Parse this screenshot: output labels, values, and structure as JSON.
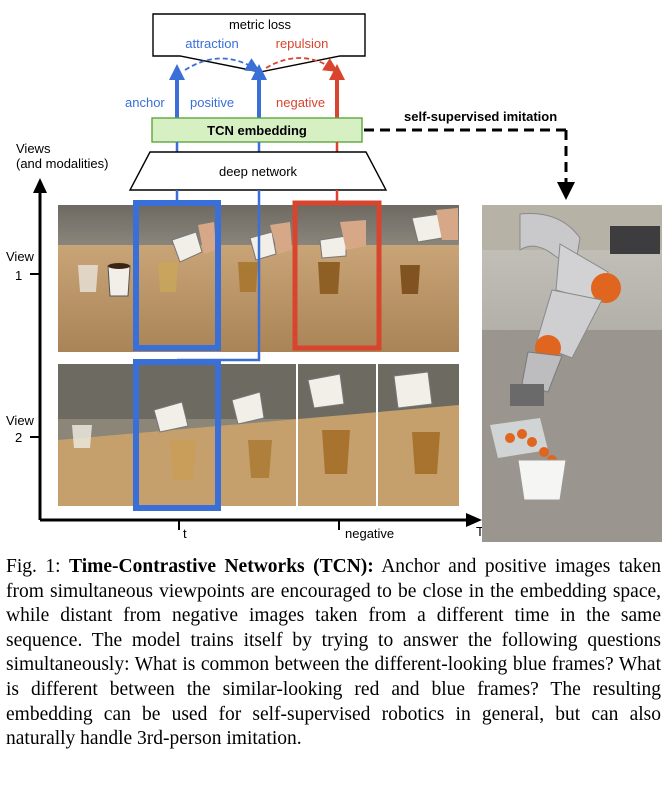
{
  "figure": {
    "metric_loss": "metric loss",
    "attraction": "attraction",
    "repulsion": "repulsion",
    "anchor": "anchor",
    "positive": "positive",
    "negative": "negative",
    "tcn_embedding": "TCN embedding",
    "deep_network": "deep network",
    "self_supervised_imitation": "self-supervised imitation",
    "views_axis_line1": "Views",
    "views_axis_line2": "(and modalities)",
    "view1_line1": "View",
    "view1_line2": "1",
    "view2_line1": "View",
    "view2_line2": "2",
    "time_axis": "Time",
    "tick_t": "t",
    "tick_negative": "negative",
    "colors": {
      "blue": "#3a6fd8",
      "red": "#d9442e",
      "green_box": "#d6f0c4",
      "green_border": "#5fa53f"
    }
  },
  "caption": {
    "label": "Fig. 1:",
    "title": "Time-Contrastive Networks (TCN):",
    "body": "Anchor and positive images taken from simultaneous viewpoints are encouraged to be close in the embedding space, while distant from negative images taken from a different time in the same sequence. The model trains itself by trying to answer the following questions simultaneously: What is common between the different-looking blue frames? What is different between the similar-looking red and blue frames? The resulting embedding can be used for self-supervised robotics in general, but can also naturally handle 3rd-person imitation."
  }
}
